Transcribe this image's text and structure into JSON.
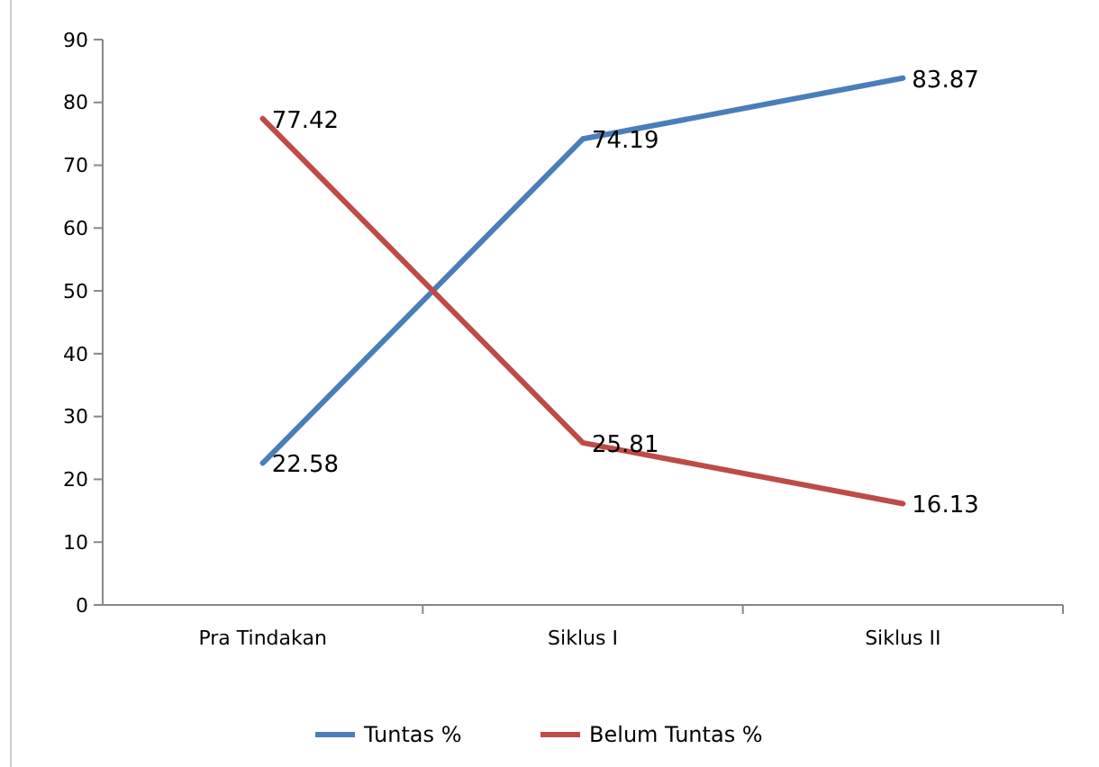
{
  "chart_data": {
    "type": "line",
    "categories": [
      "Pra Tindakan",
      "Siklus I",
      "Siklus II"
    ],
    "series": [
      {
        "name": "Tuntas %",
        "color": "#4a7ebb",
        "values": [
          22.58,
          74.19,
          83.87
        ]
      },
      {
        "name": "Belum Tuntas %",
        "color": "#be4b48",
        "values": [
          77.42,
          25.81,
          16.13
        ]
      }
    ],
    "ylim": [
      0,
      90
    ],
    "yticks": [
      0,
      10,
      20,
      30,
      40,
      50,
      60,
      70,
      80,
      90
    ],
    "grid": false,
    "legend": "bottom",
    "data_labels": true,
    "marker": "none",
    "line_style": "solid"
  }
}
